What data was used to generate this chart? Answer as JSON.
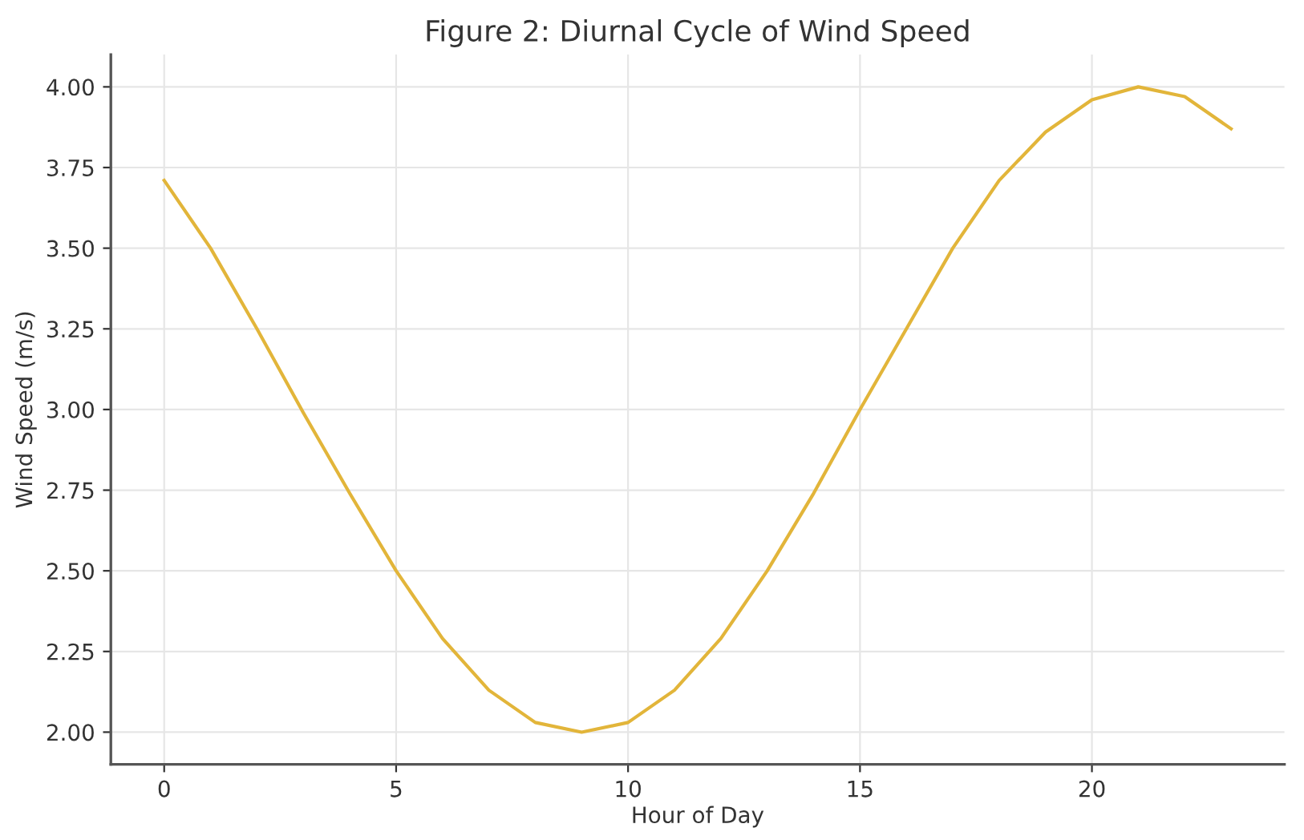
{
  "chart_data": {
    "type": "line",
    "title": "Figure 2: Diurnal Cycle of Wind Speed",
    "xlabel": "Hour of Day",
    "ylabel": "Wind Speed (m/s)",
    "x": [
      0,
      1,
      2,
      3,
      4,
      5,
      6,
      7,
      8,
      9,
      10,
      11,
      12,
      13,
      14,
      15,
      16,
      17,
      18,
      19,
      20,
      21,
      22,
      23
    ],
    "series": [
      {
        "color": "#e2b53a",
        "values": [
          3.71,
          3.5,
          3.25,
          2.99,
          2.74,
          2.5,
          2.29,
          2.13,
          2.03,
          2.0,
          2.03,
          2.13,
          2.29,
          2.5,
          2.74,
          3.0,
          3.25,
          3.5,
          3.71,
          3.86,
          3.96,
          4.0,
          3.97,
          3.87
        ]
      }
    ],
    "xlim": [
      -1.15,
      24.15
    ],
    "ylim": [
      1.9,
      4.1
    ],
    "xticks": [
      0,
      5,
      10,
      15,
      20
    ],
    "yticks": [
      {
        "value": 2.0,
        "label": "2.00"
      },
      {
        "value": 2.25,
        "label": "2.25"
      },
      {
        "value": 2.5,
        "label": "2.50"
      },
      {
        "value": 2.75,
        "label": "2.75"
      },
      {
        "value": 3.0,
        "label": "3.00"
      },
      {
        "value": 3.25,
        "label": "3.25"
      },
      {
        "value": 3.5,
        "label": "3.50"
      },
      {
        "value": 3.75,
        "label": "3.75"
      },
      {
        "value": 4.0,
        "label": "4.00"
      }
    ],
    "grid": true,
    "legend": false,
    "marker": "none",
    "line_style": "solid"
  }
}
